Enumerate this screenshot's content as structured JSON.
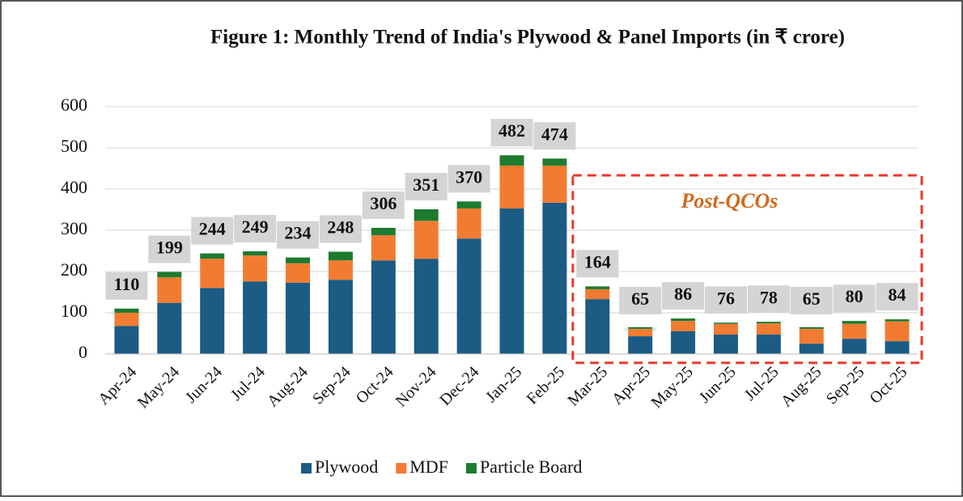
{
  "chart_data": {
    "type": "stacked_bar",
    "title": "Figure 1: Monthly Trend of India's Plywood & Panel Imports (in ₹ crore)",
    "categories": [
      "Apr-24",
      "May-24",
      "Jun-24",
      "Jul-24",
      "Aug-24",
      "Sep-24",
      "Oct-24",
      "Nov-24",
      "Dec-24",
      "Jan-25",
      "Feb-25",
      "Mar-25",
      "Apr-25",
      "May-25",
      "Jun-25",
      "Jul-25",
      "Aug-25",
      "Sep-25",
      "Oct-25"
    ],
    "series": [
      {
        "name": "Plywood",
        "color": "#1b5b84",
        "values": [
          68,
          124,
          160,
          176,
          173,
          180,
          227,
          231,
          280,
          353,
          367,
          133,
          43,
          55,
          47,
          47,
          25,
          37,
          31
        ]
      },
      {
        "name": "MDF",
        "color": "#f27b32",
        "values": [
          32,
          62,
          71,
          63,
          47,
          47,
          61,
          92,
          73,
          104,
          90,
          24,
          18,
          25,
          26,
          27,
          36,
          36,
          48
        ]
      },
      {
        "name": "Particle Board",
        "color": "#1e7a2f",
        "values": [
          10,
          13,
          13,
          10,
          14,
          21,
          18,
          28,
          17,
          25,
          17,
          7,
          4,
          6,
          3,
          4,
          4,
          7,
          5
        ]
      }
    ],
    "totals": [
      110,
      199,
      244,
      249,
      234,
      248,
      306,
      351,
      370,
      482,
      474,
      164,
      65,
      86,
      76,
      78,
      65,
      80,
      84
    ],
    "annotation": {
      "text": "Post-QCOs",
      "start": "Mar-25"
    },
    "ylim": [
      0,
      600
    ],
    "yticks": [
      0,
      100,
      200,
      300,
      400,
      500,
      600
    ],
    "grid": true,
    "legend": "bottom"
  }
}
